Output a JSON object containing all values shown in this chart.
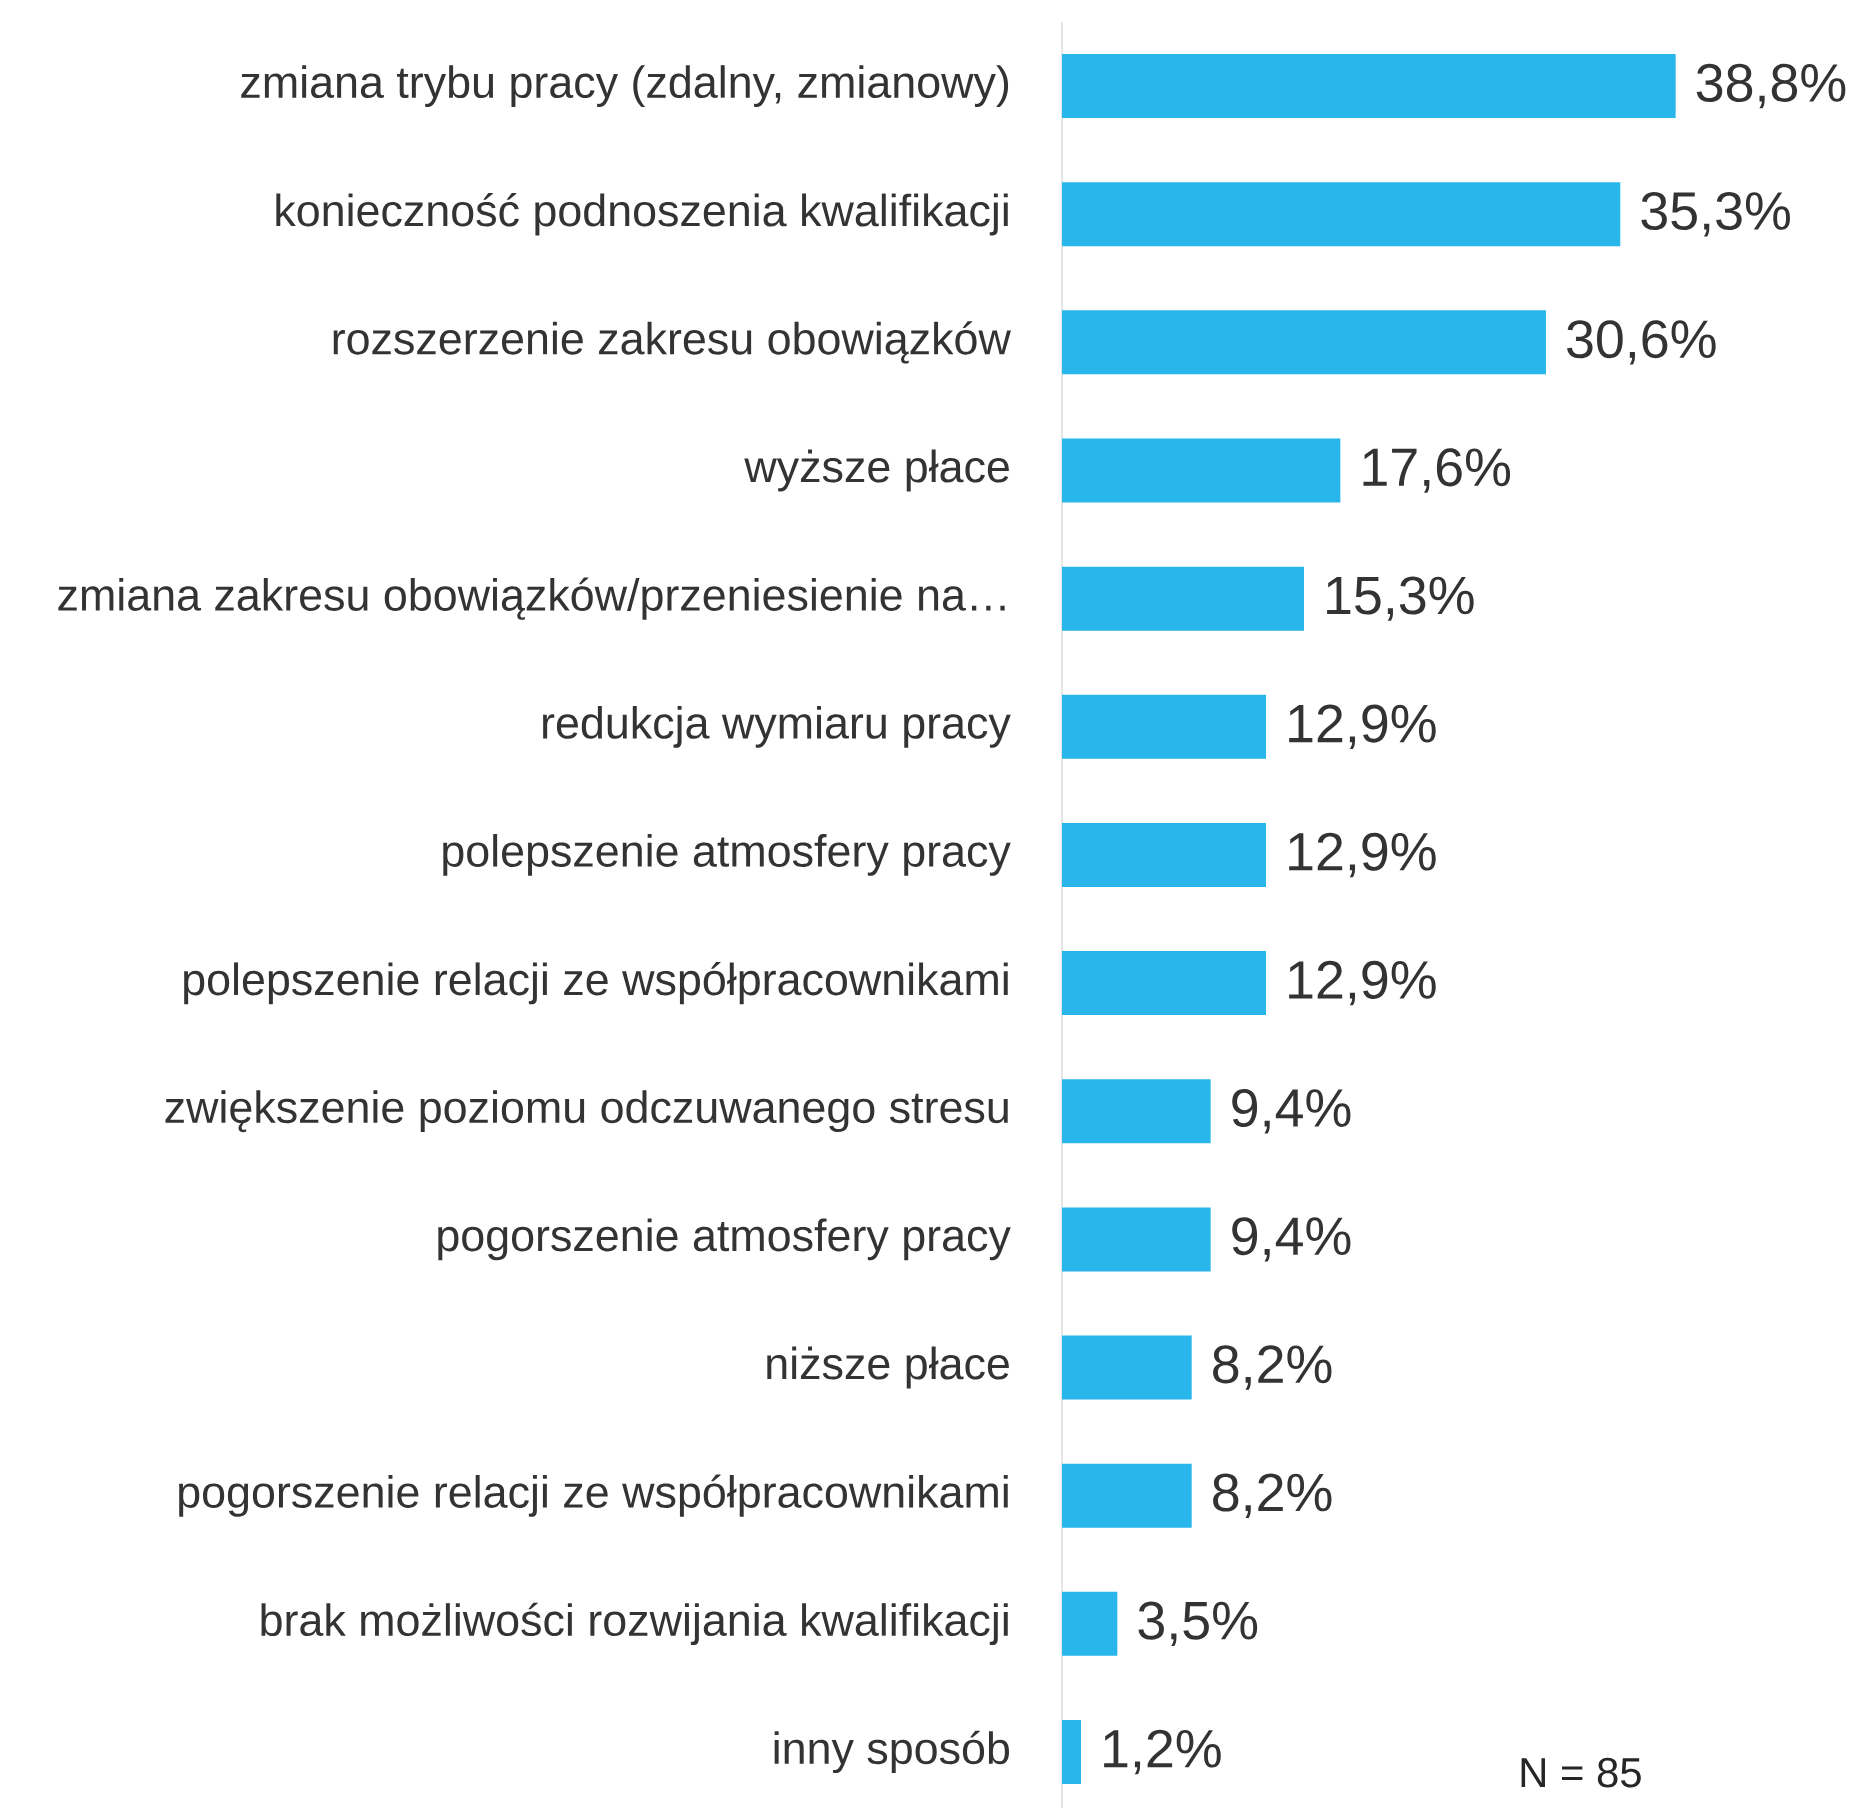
{
  "chart_data": {
    "type": "bar",
    "orientation": "horizontal",
    "categories": [
      "zmiana trybu pracy (zdalny, zmianowy)",
      "konieczność podnoszenia kwalifikacji",
      "rozszerzenie zakresu obowiązków",
      "wyższe płace",
      "zmiana zakresu obowiązków/przeniesienie na…",
      "redukcja wymiaru pracy",
      "polepszenie atmosfery pracy",
      "polepszenie relacji ze współpracownikami",
      "zwiększenie poziomu odczuwanego stresu",
      "pogorszenie atmosfery pracy",
      "niższe płace",
      "pogorszenie relacji ze współpracownikami",
      "brak możliwości rozwijania kwalifikacji",
      "inny sposób"
    ],
    "values": [
      38.8,
      35.3,
      30.6,
      17.6,
      15.3,
      12.9,
      12.9,
      12.9,
      9.4,
      9.4,
      8.2,
      8.2,
      3.5,
      1.2
    ],
    "value_labels": [
      "38,8%",
      "35,3%",
      "30,6%",
      "17,6%",
      "15,3%",
      "12,9%",
      "12,9%",
      "12,9%",
      "9,4%",
      "9,4%",
      "8,2%",
      "8,2%",
      "3,5%",
      "1,2%"
    ],
    "color": "#29b6ea",
    "annotations": [
      "N = 85"
    ]
  }
}
